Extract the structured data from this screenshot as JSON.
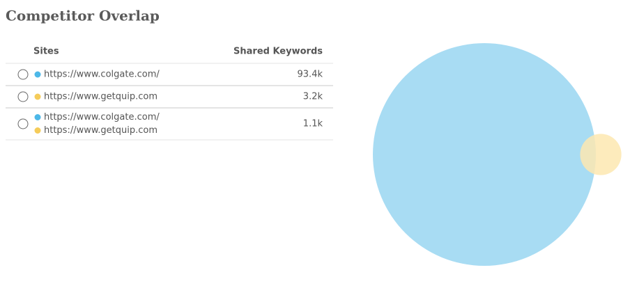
{
  "title": "Competitor Overlap",
  "table": {
    "columns": [
      "Sites",
      "Shared Keywords"
    ],
    "rows": [
      {
        "sites": [
          {
            "url": "https://www.colgate.com/",
            "color": "#4db8e8"
          }
        ],
        "value": 93400,
        "value_label": "93.4k"
      },
      {
        "sites": [
          {
            "url": "https://www.getquip.com",
            "color": "#f5cc5a"
          }
        ],
        "value": 3200,
        "value_label": "3.2k"
      },
      {
        "sites": [
          {
            "url": "https://www.colgate.com/",
            "color": "#4db8e8"
          },
          {
            "url": "https://www.getquip.com",
            "color": "#f5cc5a"
          }
        ],
        "value": 1100,
        "value_label": "1.1k"
      }
    ]
  },
  "venn_colors": [
    "#a8dcf3",
    "#fde7b0"
  ]
}
